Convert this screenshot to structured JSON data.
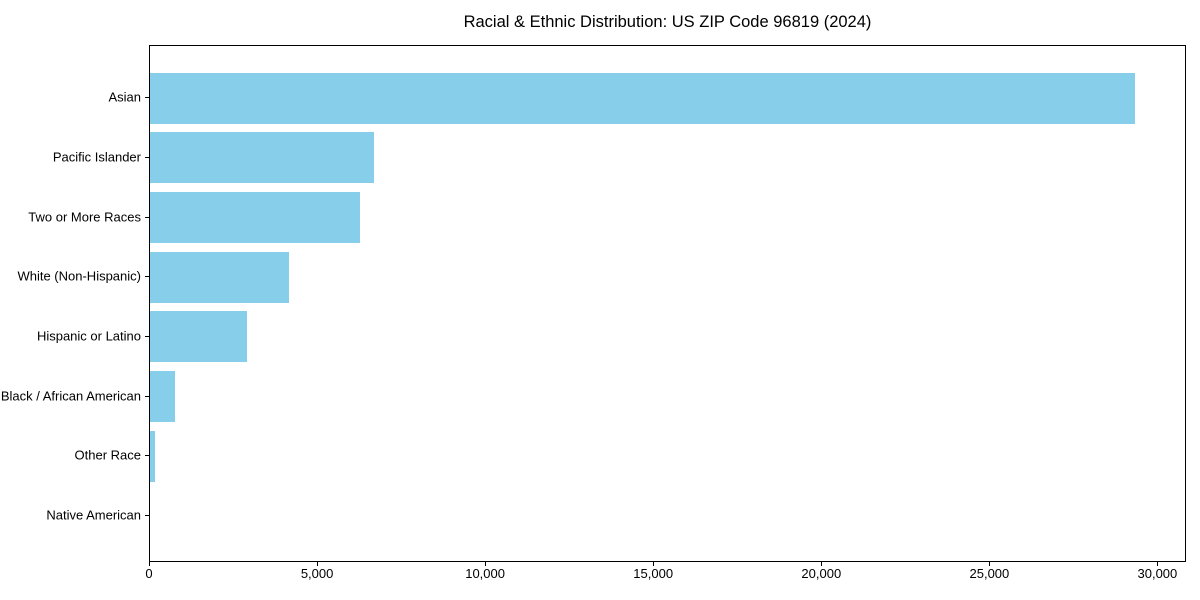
{
  "chart_data": {
    "type": "bar",
    "orientation": "horizontal",
    "title": "Racial & Ethnic Distribution: US ZIP Code 96819 (2024)",
    "categories": [
      "Asian",
      "Pacific Islander",
      "Two or More Races",
      "White (Non-Hispanic)",
      "Hispanic or Latino",
      "Black / African American",
      "Other Race",
      "Native American"
    ],
    "values": [
      29350,
      6670,
      6260,
      4140,
      2900,
      740,
      160,
      0
    ],
    "xlabel": "",
    "ylabel": "",
    "xlim": [
      0,
      30850
    ],
    "xticks": [
      0,
      5000,
      10000,
      15000,
      20000,
      25000,
      30000
    ],
    "xtick_labels": [
      "0",
      "5,000",
      "10,000",
      "15,000",
      "20,000",
      "25,000",
      "30,000"
    ],
    "bar_color": "#87CEEB",
    "background_color": "#ffffff",
    "spine_color": "#000000",
    "grid": false,
    "legend": null
  }
}
